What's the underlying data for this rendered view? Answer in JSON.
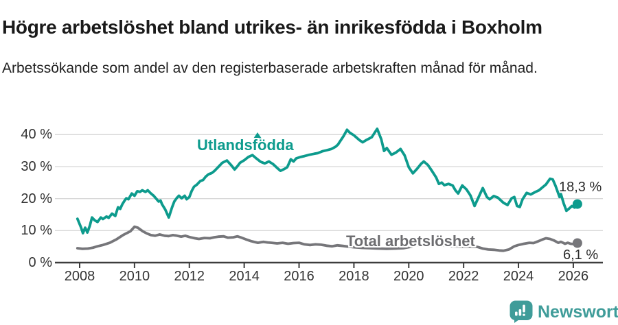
{
  "header": {
    "title": "Högre arbetslöshet bland utrikes- än inrikesfödda i Boxholm",
    "subtitle": "Arbetssökande som andel av den registerbaserade arbetskraften månad för månad."
  },
  "chart_data": {
    "type": "line",
    "x_axis": {
      "tick_labels": [
        "2008",
        "2010",
        "2012",
        "2014",
        "2016",
        "2018",
        "2020",
        "2022",
        "2024",
        "2026"
      ],
      "range": [
        2007.85,
        2026.5
      ]
    },
    "y_axis": {
      "tick_labels": [
        "0 %",
        "10 %",
        "20 %",
        "30 %",
        "40 %"
      ],
      "tick_values": [
        0,
        10,
        20,
        30,
        40
      ],
      "unit": "%",
      "range": [
        0,
        43
      ]
    },
    "grid": true,
    "legend_position": "inline-labels",
    "series": [
      {
        "name": "Utlandsfödda",
        "color": "#0d9b8d",
        "end_label": "18,3 %",
        "end_value": 18.3,
        "points": [
          [
            2007.92,
            13.7
          ],
          [
            2008.05,
            11.0
          ],
          [
            2008.12,
            9.2
          ],
          [
            2008.2,
            10.9
          ],
          [
            2008.28,
            9.4
          ],
          [
            2008.37,
            11.5
          ],
          [
            2008.45,
            14.1
          ],
          [
            2008.55,
            13.2
          ],
          [
            2008.65,
            12.7
          ],
          [
            2008.77,
            14.1
          ],
          [
            2008.85,
            13.6
          ],
          [
            2008.98,
            14.4
          ],
          [
            2009.06,
            14.0
          ],
          [
            2009.18,
            15.3
          ],
          [
            2009.3,
            14.6
          ],
          [
            2009.4,
            17.3
          ],
          [
            2009.48,
            16.8
          ],
          [
            2009.56,
            18.3
          ],
          [
            2009.64,
            19.4
          ],
          [
            2009.7,
            20.1
          ],
          [
            2009.78,
            19.8
          ],
          [
            2009.9,
            21.6
          ],
          [
            2010.0,
            20.9
          ],
          [
            2010.1,
            22.3
          ],
          [
            2010.2,
            22.1
          ],
          [
            2010.28,
            22.6
          ],
          [
            2010.4,
            22.1
          ],
          [
            2010.48,
            22.6
          ],
          [
            2010.6,
            21.6
          ],
          [
            2010.7,
            20.9
          ],
          [
            2010.78,
            20.1
          ],
          [
            2010.88,
            19.1
          ],
          [
            2010.95,
            19.4
          ],
          [
            2011.0,
            18.3
          ],
          [
            2011.12,
            16.6
          ],
          [
            2011.25,
            14.1
          ],
          [
            2011.37,
            17.3
          ],
          [
            2011.45,
            19.1
          ],
          [
            2011.55,
            20.3
          ],
          [
            2011.62,
            20.9
          ],
          [
            2011.72,
            20.1
          ],
          [
            2011.83,
            20.9
          ],
          [
            2011.9,
            19.8
          ],
          [
            2012.0,
            20.5
          ],
          [
            2012.08,
            22.3
          ],
          [
            2012.17,
            23.7
          ],
          [
            2012.28,
            24.4
          ],
          [
            2012.4,
            25.5
          ],
          [
            2012.5,
            25.8
          ],
          [
            2012.6,
            26.9
          ],
          [
            2012.7,
            27.6
          ],
          [
            2012.82,
            28.0
          ],
          [
            2012.92,
            28.7
          ],
          [
            2013.0,
            29.4
          ],
          [
            2013.08,
            30.1
          ],
          [
            2013.2,
            31.2
          ],
          [
            2013.37,
            31.9
          ],
          [
            2013.52,
            30.5
          ],
          [
            2013.65,
            29.1
          ],
          [
            2013.75,
            30.1
          ],
          [
            2013.85,
            31.2
          ],
          [
            2014.0,
            32.0
          ],
          [
            2014.15,
            33.0
          ],
          [
            2014.3,
            33.6
          ],
          [
            2014.45,
            32.5
          ],
          [
            2014.6,
            31.5
          ],
          [
            2014.75,
            31.0
          ],
          [
            2014.9,
            31.6
          ],
          [
            2015.05,
            30.8
          ],
          [
            2015.2,
            29.6
          ],
          [
            2015.32,
            28.7
          ],
          [
            2015.45,
            29.2
          ],
          [
            2015.57,
            29.8
          ],
          [
            2015.7,
            32.3
          ],
          [
            2015.8,
            31.6
          ],
          [
            2015.9,
            32.6
          ],
          [
            2016.05,
            33.0
          ],
          [
            2016.2,
            33.3
          ],
          [
            2016.38,
            33.7
          ],
          [
            2016.55,
            34.0
          ],
          [
            2016.68,
            34.2
          ],
          [
            2016.85,
            34.8
          ],
          [
            2017.0,
            35.1
          ],
          [
            2017.18,
            35.5
          ],
          [
            2017.33,
            36.2
          ],
          [
            2017.42,
            36.9
          ],
          [
            2017.52,
            38.2
          ],
          [
            2017.62,
            39.5
          ],
          [
            2017.75,
            41.5
          ],
          [
            2017.85,
            40.6
          ],
          [
            2018.0,
            39.8
          ],
          [
            2018.2,
            38.3
          ],
          [
            2018.32,
            37.6
          ],
          [
            2018.45,
            38.3
          ],
          [
            2018.65,
            39.2
          ],
          [
            2018.85,
            41.8
          ],
          [
            2019.0,
            38.5
          ],
          [
            2019.1,
            34.9
          ],
          [
            2019.2,
            35.8
          ],
          [
            2019.37,
            33.7
          ],
          [
            2019.53,
            34.4
          ],
          [
            2019.7,
            35.5
          ],
          [
            2019.85,
            33.5
          ],
          [
            2020.0,
            29.8
          ],
          [
            2020.15,
            27.9
          ],
          [
            2020.3,
            29.3
          ],
          [
            2020.45,
            30.9
          ],
          [
            2020.55,
            31.6
          ],
          [
            2020.7,
            30.5
          ],
          [
            2020.85,
            28.6
          ],
          [
            2021.0,
            26.6
          ],
          [
            2021.1,
            24.6
          ],
          [
            2021.2,
            25.0
          ],
          [
            2021.3,
            24.2
          ],
          [
            2021.45,
            24.6
          ],
          [
            2021.6,
            24.1
          ],
          [
            2021.7,
            22.6
          ],
          [
            2021.8,
            21.6
          ],
          [
            2021.95,
            24.1
          ],
          [
            2022.1,
            22.9
          ],
          [
            2022.25,
            21.0
          ],
          [
            2022.4,
            17.7
          ],
          [
            2022.55,
            20.5
          ],
          [
            2022.7,
            23.3
          ],
          [
            2022.85,
            20.5
          ],
          [
            2022.95,
            19.8
          ],
          [
            2023.1,
            20.8
          ],
          [
            2023.25,
            20.3
          ],
          [
            2023.45,
            18.7
          ],
          [
            2023.6,
            18.0
          ],
          [
            2023.75,
            20.1
          ],
          [
            2023.85,
            20.5
          ],
          [
            2023.95,
            17.7
          ],
          [
            2024.05,
            17.4
          ],
          [
            2024.15,
            19.8
          ],
          [
            2024.3,
            21.8
          ],
          [
            2024.45,
            21.3
          ],
          [
            2024.6,
            22.0
          ],
          [
            2024.75,
            22.6
          ],
          [
            2024.9,
            23.7
          ],
          [
            2025.0,
            24.4
          ],
          [
            2025.15,
            26.2
          ],
          [
            2025.25,
            26.0
          ],
          [
            2025.35,
            24.0
          ],
          [
            2025.5,
            20.5
          ],
          [
            2025.55,
            21.4
          ],
          [
            2025.65,
            18.5
          ],
          [
            2025.75,
            16.2
          ],
          [
            2025.85,
            16.9
          ],
          [
            2025.95,
            17.7
          ],
          [
            2026.05,
            17.2
          ],
          [
            2026.15,
            18.3
          ]
        ]
      },
      {
        "name": "Total arbetslöshet",
        "color": "#76767a",
        "end_label": "6,1 %",
        "end_value": 6.1,
        "points": [
          [
            2007.92,
            4.5
          ],
          [
            2008.1,
            4.3
          ],
          [
            2008.3,
            4.4
          ],
          [
            2008.5,
            4.7
          ],
          [
            2008.65,
            5.1
          ],
          [
            2008.85,
            5.5
          ],
          [
            2009.1,
            6.2
          ],
          [
            2009.35,
            7.3
          ],
          [
            2009.6,
            8.7
          ],
          [
            2009.85,
            9.8
          ],
          [
            2010.0,
            11.2
          ],
          [
            2010.12,
            10.9
          ],
          [
            2010.3,
            9.8
          ],
          [
            2010.45,
            9.1
          ],
          [
            2010.6,
            8.6
          ],
          [
            2010.75,
            8.4
          ],
          [
            2010.92,
            8.8
          ],
          [
            2011.1,
            8.4
          ],
          [
            2011.25,
            8.3
          ],
          [
            2011.4,
            8.6
          ],
          [
            2011.55,
            8.4
          ],
          [
            2011.7,
            8.1
          ],
          [
            2011.85,
            8.4
          ],
          [
            2012.0,
            8.0
          ],
          [
            2012.2,
            7.6
          ],
          [
            2012.35,
            7.4
          ],
          [
            2012.55,
            7.7
          ],
          [
            2012.75,
            7.6
          ],
          [
            2012.9,
            7.9
          ],
          [
            2013.05,
            8.1
          ],
          [
            2013.25,
            8.2
          ],
          [
            2013.4,
            7.8
          ],
          [
            2013.6,
            7.9
          ],
          [
            2013.75,
            8.2
          ],
          [
            2013.9,
            7.8
          ],
          [
            2014.05,
            7.3
          ],
          [
            2014.25,
            6.7
          ],
          [
            2014.5,
            6.2
          ],
          [
            2014.7,
            6.5
          ],
          [
            2014.85,
            6.3
          ],
          [
            2015.0,
            6.2
          ],
          [
            2015.2,
            6.0
          ],
          [
            2015.4,
            6.2
          ],
          [
            2015.6,
            5.9
          ],
          [
            2015.8,
            6.1
          ],
          [
            2016.0,
            6.2
          ],
          [
            2016.2,
            5.7
          ],
          [
            2016.4,
            5.5
          ],
          [
            2016.6,
            5.7
          ],
          [
            2016.8,
            5.6
          ],
          [
            2017.0,
            5.3
          ],
          [
            2017.2,
            5.1
          ],
          [
            2017.4,
            5.4
          ],
          [
            2017.6,
            5.2
          ],
          [
            2017.8,
            5.0
          ],
          [
            2018.0,
            4.8
          ],
          [
            2018.3,
            4.6
          ],
          [
            2018.6,
            4.5
          ],
          [
            2018.9,
            4.4
          ],
          [
            2019.2,
            4.3
          ],
          [
            2019.5,
            4.4
          ],
          [
            2019.8,
            4.5
          ],
          [
            2020.1,
            5.0
          ],
          [
            2020.4,
            5.6
          ],
          [
            2020.7,
            5.9
          ],
          [
            2021.0,
            5.6
          ],
          [
            2021.3,
            5.3
          ],
          [
            2021.6,
            5.1
          ],
          [
            2021.9,
            5.0
          ],
          [
            2022.2,
            5.0
          ],
          [
            2022.5,
            4.9
          ],
          [
            2022.7,
            4.4
          ],
          [
            2022.9,
            4.1
          ],
          [
            2023.1,
            4.0
          ],
          [
            2023.3,
            3.8
          ],
          [
            2023.45,
            3.7
          ],
          [
            2023.65,
            4.1
          ],
          [
            2023.85,
            5.1
          ],
          [
            2024.0,
            5.5
          ],
          [
            2024.2,
            5.9
          ],
          [
            2024.4,
            6.2
          ],
          [
            2024.55,
            6.1
          ],
          [
            2024.7,
            6.6
          ],
          [
            2024.9,
            7.3
          ],
          [
            2025.0,
            7.6
          ],
          [
            2025.15,
            7.4
          ],
          [
            2025.3,
            6.9
          ],
          [
            2025.45,
            6.2
          ],
          [
            2025.55,
            6.5
          ],
          [
            2025.7,
            5.9
          ],
          [
            2025.8,
            6.2
          ],
          [
            2025.9,
            5.9
          ],
          [
            2026.0,
            5.8
          ],
          [
            2026.15,
            6.1
          ]
        ]
      }
    ]
  },
  "branding": {
    "name": "Newsworthy",
    "color": "#3f9c99"
  }
}
